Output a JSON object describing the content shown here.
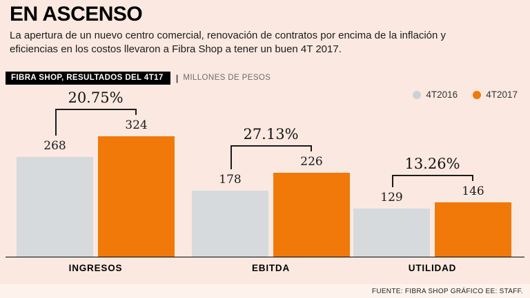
{
  "page": {
    "title": "EN ASCENSO",
    "subtitle": "La apertura de un nuevo centro comercial, renovación de contratos por encima de la inflación y eficiencias en los costos llevaron a Fibra Shop a tener un buen 4T 2017.",
    "source": "FUENTE: FIBRA SHOP GRÁFICO EE: STAFF."
  },
  "header": {
    "label": "FIBRA SHOP, RESULTADOS DEL 4T17",
    "divider": "|",
    "units": "MILLONES DE PESOS"
  },
  "legend": [
    {
      "label": "4T2016",
      "color": "#ccd1d5"
    },
    {
      "label": "4T2017",
      "color": "#f0790a"
    }
  ],
  "chart_data": {
    "type": "bar",
    "title": "FIBRA SHOP, RESULTADOS DEL 4T17",
    "units": "MILLONES DE PESOS",
    "categories": [
      "INGRESOS",
      "EBITDA",
      "UTILIDAD"
    ],
    "series": [
      {
        "name": "4T2016",
        "values": [
          268,
          178,
          129
        ]
      },
      {
        "name": "4T2017",
        "values": [
          324,
          226,
          146
        ]
      }
    ],
    "growth_labels": [
      "20.75%",
      "27.13%",
      "13.26%"
    ],
    "ylim": [
      0,
      340
    ],
    "grid": false,
    "legend_position": "top-right",
    "colors": {
      "4T2016": "#d6dadd",
      "4T2017": "#f0790a"
    }
  }
}
